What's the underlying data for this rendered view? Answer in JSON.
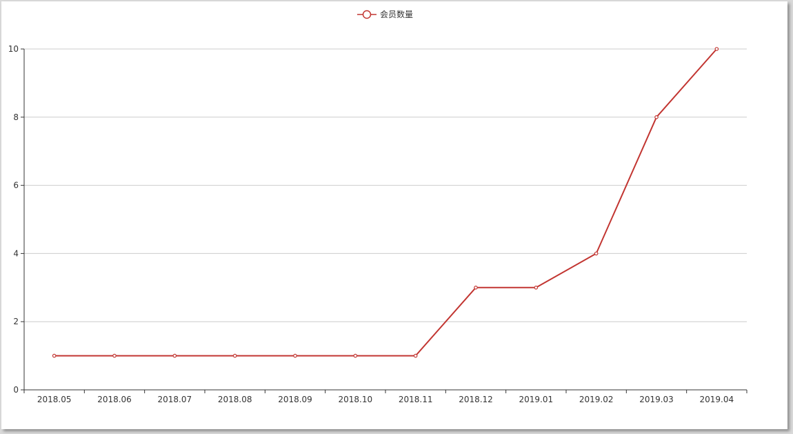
{
  "chart_data": {
    "type": "line",
    "categories": [
      "2018.05",
      "2018.06",
      "2018.07",
      "2018.08",
      "2018.09",
      "2018.10",
      "2018.11",
      "2018.12",
      "2019.01",
      "2019.02",
      "2019.03",
      "2019.04"
    ],
    "series": [
      {
        "name": "会员数量",
        "values": [
          1,
          1,
          1,
          1,
          1,
          1,
          1,
          3,
          3,
          4,
          8,
          10
        ],
        "color": "#c23531"
      }
    ],
    "ylim": [
      0,
      10
    ],
    "yticks": [
      0,
      2,
      4,
      6,
      8,
      10
    ],
    "grid": true,
    "legend_position": "top-center"
  }
}
